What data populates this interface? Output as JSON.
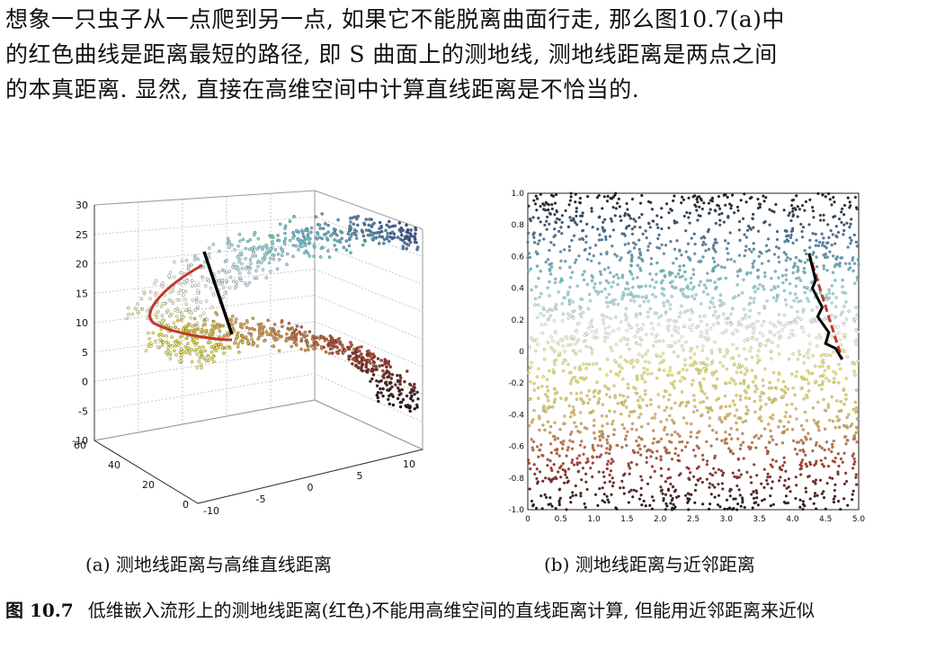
{
  "paragraph": {
    "lines": [
      "想象一只虫子从一点爬到另一点, 如果它不能脱离曲面行走, 那么图10.7(a)中",
      "的红色曲线是距离最短的路径, 即 S 曲面上的测地线, 测地线距离是两点之间",
      "的本真距离. 显然, 直接在高维空间中计算直线距离是不恰当的."
    ]
  },
  "figure": {
    "label": "图 10.7",
    "caption_text": "低维嵌入流形上的测地线距离(红色)不能用高维空间的直线距离计算, 但能用近邻距离来近似",
    "subfig_a": {
      "caption": "(a) 测地线距离与高维直线距离"
    },
    "subfig_b": {
      "caption": "(b) 测地线距离与近邻距离"
    }
  },
  "chart_data": [
    {
      "type": "scatter",
      "title": "",
      "xlabel": "",
      "ylabel": "",
      "z_ticks": [
        "30",
        "25",
        "20",
        "15",
        "10",
        "5",
        "0",
        "-5",
        "-10"
      ],
      "x_ticks": [
        "-10",
        "-5",
        "0",
        "5",
        "10"
      ],
      "y_ticks": [
        "0",
        "20",
        "40",
        "60"
      ],
      "zlim": [
        -10,
        30
      ],
      "grid": true,
      "series": [
        {
          "color": "#c0392b"
        },
        {
          "color": "#111111"
        }
      ],
      "colormap": [
        "#111111",
        "#b03a2e",
        "#e0a050",
        "#e8e840",
        "#ffffff",
        "#70d0d8",
        "#4060a0",
        "#111111"
      ]
    },
    {
      "type": "scatter",
      "title": "",
      "xlabel": "",
      "ylabel": "",
      "x_ticks": [
        "0",
        "0.5",
        "1.0",
        "1.5",
        "2.0",
        "2.5",
        "3.0",
        "3.5",
        "4.0",
        "4.5",
        "5.0"
      ],
      "y_ticks": [
        "1.0",
        "0.8",
        "0.6",
        "0.4",
        "0.2",
        "0",
        "-0.2",
        "-0.4",
        "-0.6",
        "-0.8",
        "-1.0"
      ],
      "xlim": [
        0,
        5
      ],
      "ylim": [
        -1,
        1
      ],
      "grid": false,
      "geodesic_red": [
        [
          4.25,
          0.62
        ],
        [
          4.45,
          0.35
        ],
        [
          4.6,
          0.15
        ],
        [
          4.75,
          -0.05
        ]
      ],
      "neighbor_black": [
        [
          4.25,
          0.62
        ],
        [
          4.35,
          0.45
        ],
        [
          4.3,
          0.4
        ],
        [
          4.45,
          0.28
        ],
        [
          4.38,
          0.22
        ],
        [
          4.55,
          0.12
        ],
        [
          4.5,
          0.05
        ],
        [
          4.65,
          0.02
        ],
        [
          4.75,
          -0.05
        ]
      ],
      "series": [
        {
          "color": "#c0392b"
        },
        {
          "color": "#111111"
        }
      ]
    }
  ]
}
